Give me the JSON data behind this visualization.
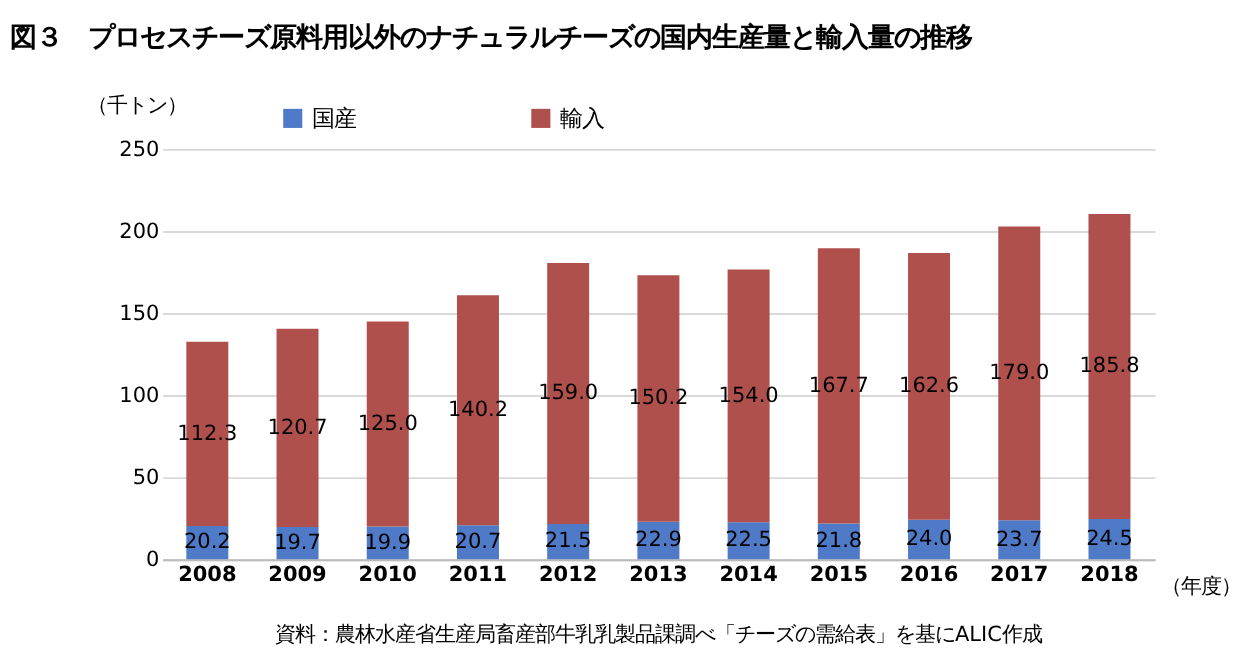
{
  "chart_data": {
    "type": "bar",
    "stacked": true,
    "title": "図３　プロセスチーズ原料用以外のナチュラルチーズの国内生産量と輸入量の推移",
    "ylabel": "（千トン）",
    "xlabel": "（年度）",
    "categories": [
      "2008",
      "2009",
      "2010",
      "2011",
      "2012",
      "2013",
      "2014",
      "2015",
      "2016",
      "2017",
      "2018"
    ],
    "series": [
      {
        "name": "国産",
        "color": "#4f7ac8",
        "values": [
          20.2,
          19.7,
          19.9,
          20.7,
          21.5,
          22.9,
          22.5,
          21.8,
          24.0,
          23.7,
          24.5
        ],
        "value_labels": [
          "20.2",
          "19.7",
          "19.9",
          "20.7",
          "21.5",
          "22.9",
          "22.5",
          "21.8",
          "24.0",
          "23.7",
          "24.5"
        ]
      },
      {
        "name": "輸入",
        "color": "#b0504d",
        "values": [
          112.3,
          120.7,
          125.0,
          140.2,
          159.0,
          150.2,
          154.0,
          167.7,
          162.6,
          179.0,
          185.8
        ],
        "value_labels": [
          "112.3",
          "120.7",
          "125.0",
          "140.2",
          "159.0",
          "150.2",
          "154.0",
          "167.7",
          "162.6",
          "179.0",
          "185.8"
        ]
      }
    ],
    "ylim": [
      0,
      250
    ],
    "yticks": [
      0,
      50,
      100,
      150,
      200,
      250
    ],
    "grid": "y",
    "legend": "top",
    "annotations": [
      "資料：農林水産省生産局畜産部牛乳乳製品課調べ「チーズの需給表」を基にALIC作成"
    ]
  }
}
